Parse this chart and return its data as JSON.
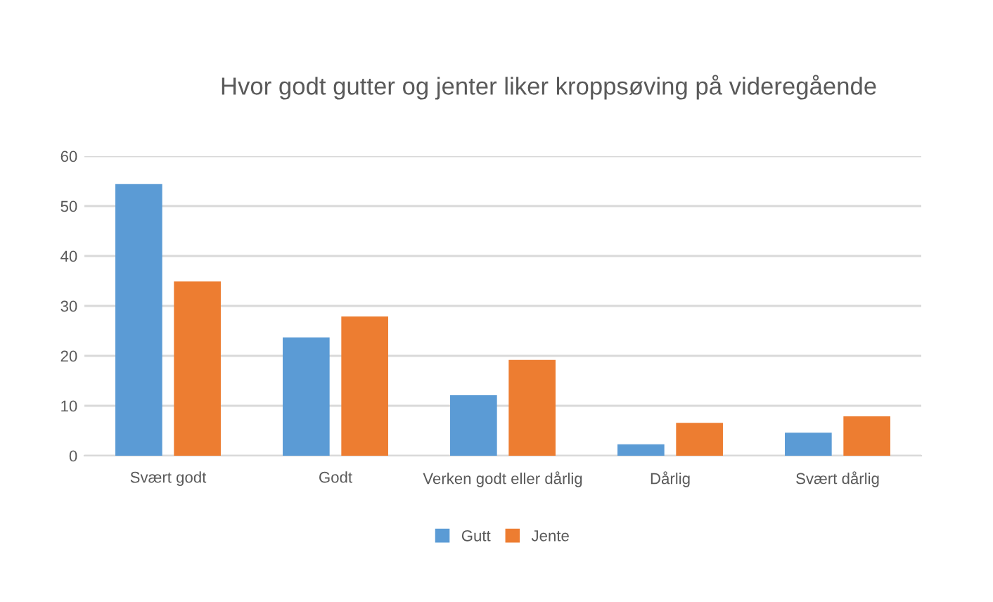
{
  "chart_data": {
    "type": "bar",
    "title": "Hvor godt gutter og jenter liker kroppsøving på videregående",
    "categories": [
      "Svært godt",
      "Godt",
      "Verken godt eller dårlig",
      "Dårlig",
      "Svært dårlig"
    ],
    "series": [
      {
        "name": "Gutt",
        "color": "#5b9bd5",
        "values": [
          54.4,
          23.7,
          12.1,
          2.3,
          4.6
        ]
      },
      {
        "name": "Jente",
        "color": "#ed7d31",
        "values": [
          34.9,
          27.9,
          19.2,
          6.6,
          7.9
        ]
      }
    ],
    "ylim": [
      0,
      60
    ],
    "yticks": [
      0,
      10,
      20,
      30,
      40,
      50,
      60
    ],
    "grid": "y",
    "legend": "bottom"
  }
}
